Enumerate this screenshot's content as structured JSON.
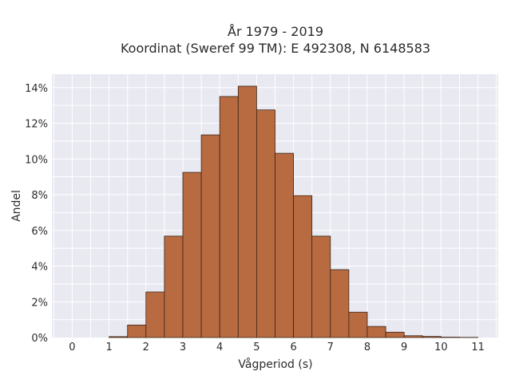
{
  "chart_data": {
    "type": "bar",
    "title": "År 1979 - 2019",
    "subtitle": "Koordinat (Sweref 99 TM): E 492308, N 6148583",
    "xlabel": "Vågperiod (s)",
    "ylabel": "Andel",
    "xlim": [
      -0.55,
      11.55
    ],
    "ylim": [
      0,
      0.1475
    ],
    "x_ticks": [
      0,
      1,
      2,
      3,
      4,
      5,
      6,
      7,
      8,
      9,
      10,
      11
    ],
    "y_ticks": [
      0,
      0.02,
      0.04,
      0.06,
      0.08,
      0.1,
      0.12,
      0.14
    ],
    "y_tick_labels": [
      "0%",
      "2%",
      "4%",
      "6%",
      "8%",
      "10%",
      "12%",
      "14%"
    ],
    "bin_width": 0.5,
    "bins": [
      {
        "x0": 1.0,
        "value": 0.0005
      },
      {
        "x0": 1.5,
        "value": 0.007
      },
      {
        "x0": 2.0,
        "value": 0.0255
      },
      {
        "x0": 2.5,
        "value": 0.0568
      },
      {
        "x0": 3.0,
        "value": 0.0925
      },
      {
        "x0": 3.5,
        "value": 0.1135
      },
      {
        "x0": 4.0,
        "value": 0.135
      },
      {
        "x0": 4.5,
        "value": 0.1408
      },
      {
        "x0": 5.0,
        "value": 0.1275
      },
      {
        "x0": 5.5,
        "value": 0.1032
      },
      {
        "x0": 6.0,
        "value": 0.0795
      },
      {
        "x0": 6.5,
        "value": 0.0568
      },
      {
        "x0": 7.0,
        "value": 0.038
      },
      {
        "x0": 7.5,
        "value": 0.0142
      },
      {
        "x0": 8.0,
        "value": 0.0062
      },
      {
        "x0": 8.5,
        "value": 0.003
      },
      {
        "x0": 9.0,
        "value": 0.001
      },
      {
        "x0": 9.5,
        "value": 0.0006
      },
      {
        "x0": 10.0,
        "value": 0.0002
      },
      {
        "x0": 10.5,
        "value": 0.0001
      }
    ],
    "grid": true,
    "colors": {
      "bar": "#b86a40",
      "bar_edge": "#3a2416",
      "plot_bg": "#e9e9f2",
      "grid": "#ffffff"
    }
  }
}
